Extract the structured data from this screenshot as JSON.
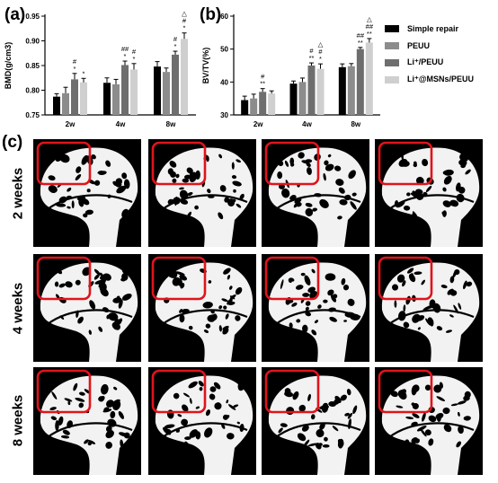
{
  "panels": {
    "a": "(a)",
    "b": "(b)",
    "c": "(c)"
  },
  "legend": [
    {
      "label": "Simple repair",
      "color": "#000000"
    },
    {
      "label": "PEUU",
      "color": "#8c8c8c"
    },
    {
      "label": "Li⁺/PEUU",
      "color": "#6e6e6e"
    },
    {
      "label": "Li⁺@MSNs/PEUU",
      "color": "#cfcfcf"
    }
  ],
  "chart_data": [
    {
      "type": "bar",
      "ylabel": "BMD(g/cm3)",
      "categories": [
        "2w",
        "4w",
        "8w"
      ],
      "ylim": [
        0.75,
        0.95
      ],
      "yticks": [
        "0.75",
        "0.80",
        "0.85",
        "0.90",
        "0.95"
      ],
      "series": [
        {
          "name": "Simple repair",
          "values": [
            0.787,
            0.815,
            0.848
          ],
          "err": [
            0.006,
            0.01,
            0.01
          ]
        },
        {
          "name": "PEUU",
          "values": [
            0.794,
            0.812,
            0.837
          ],
          "err": [
            0.012,
            0.01,
            0.008
          ]
        },
        {
          "name": "Li⁺/PEUU",
          "values": [
            0.822,
            0.851,
            0.872
          ],
          "err": [
            0.012,
            0.008,
            0.007
          ]
        },
        {
          "name": "Li⁺@MSNs/PEUU",
          "values": [
            0.816,
            0.842,
            0.904
          ],
          "err": [
            0.008,
            0.012,
            0.012
          ]
        }
      ],
      "annotations": [
        [
          "",
          "",
          "#\n*",
          "*"
        ],
        [
          "",
          "",
          "##\n*",
          "#\n*"
        ],
        [
          "",
          "",
          "#\n*",
          "△\n#\n*"
        ]
      ]
    },
    {
      "type": "bar",
      "ylabel": "BV/TV(%)",
      "categories": [
        "2w",
        "4w",
        "8w"
      ],
      "ylim": [
        30,
        60
      ],
      "yticks": [
        "30",
        "40",
        "50",
        "60"
      ],
      "series": [
        {
          "name": "Simple repair",
          "values": [
            34.5,
            39.5,
            44.5
          ],
          "err": [
            1.2,
            0.8,
            1.0
          ]
        },
        {
          "name": "PEUU",
          "values": [
            35.0,
            40.0,
            44.8
          ],
          "err": [
            1.3,
            1.2,
            0.8
          ]
        },
        {
          "name": "Li⁺/PEUU",
          "values": [
            37.0,
            45.0,
            50.0
          ],
          "err": [
            1.0,
            0.8,
            0.5
          ]
        },
        {
          "name": "Li⁺@MSNs/PEUU",
          "values": [
            36.5,
            44.0,
            52.0
          ],
          "err": [
            0.8,
            1.5,
            1.2
          ]
        }
      ],
      "annotations": [
        [
          "",
          "",
          "#\n**",
          ""
        ],
        [
          "",
          "",
          "#\n**",
          "△\n#\n*"
        ],
        [
          "",
          "",
          "##\n**",
          "△\n##\n**"
        ]
      ]
    }
  ],
  "rows": [
    "2 weeks",
    "4 weeks",
    "8 weeks"
  ]
}
